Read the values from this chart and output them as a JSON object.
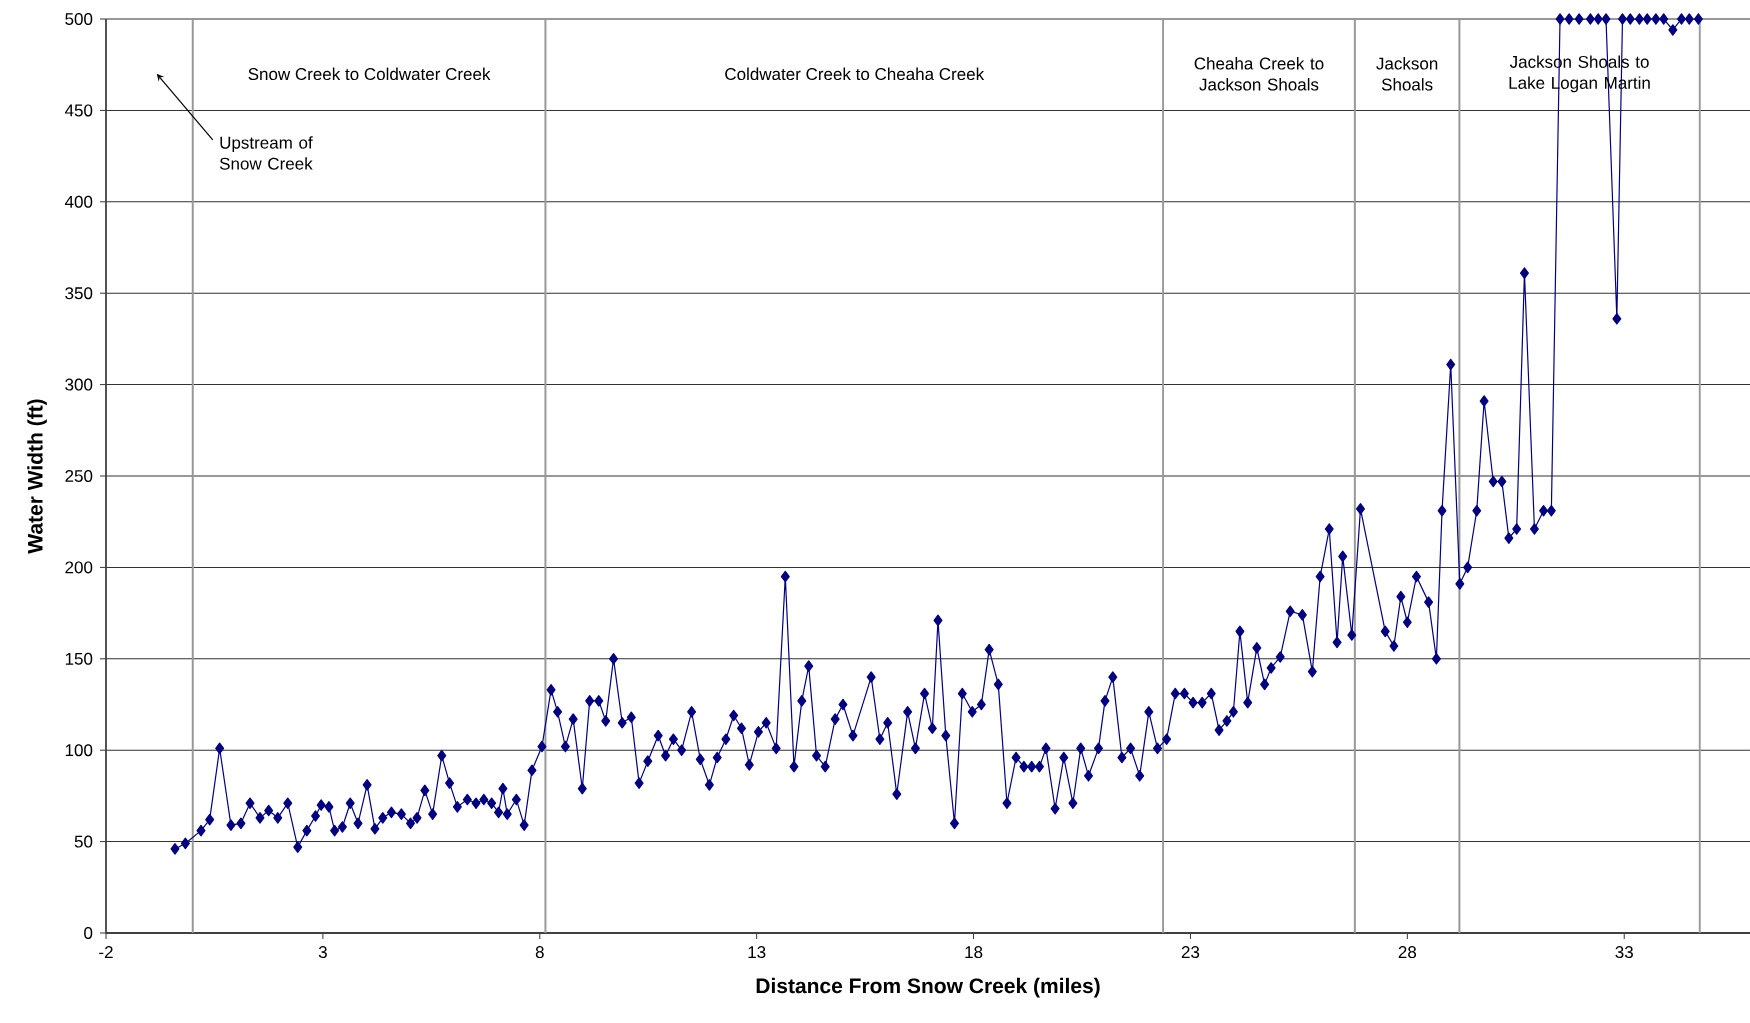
{
  "chart_data": {
    "type": "line",
    "xlabel": "Distance From Snow Creek (miles)",
    "ylabel": "Water Width (ft)",
    "xlim": [
      -2,
      35.9
    ],
    "ylim": [
      0,
      500
    ],
    "xticks": [
      -2,
      3,
      8,
      13,
      18,
      23,
      28,
      33
    ],
    "yticks": [
      0,
      50,
      100,
      150,
      200,
      250,
      300,
      350,
      400,
      450,
      500
    ],
    "grid": "y",
    "marker": "diamond",
    "line_style": "solid",
    "series": [
      {
        "color": "#000080",
        "x": [
          -0.41,
          -0.17,
          0.19,
          0.39,
          0.62,
          0.88,
          1.11,
          1.32,
          1.55,
          1.75,
          1.96,
          2.19,
          2.42,
          2.63,
          2.83,
          2.96,
          3.14,
          3.27,
          3.45,
          3.63,
          3.81,
          4.02,
          4.2,
          4.38,
          4.58,
          4.81,
          5.02,
          5.17,
          5.35,
          5.53,
          5.74,
          5.92,
          6.1,
          6.33,
          6.53,
          6.71,
          6.89,
          7.05,
          7.15,
          7.25,
          7.46,
          7.64,
          7.82,
          8.05,
          8.26,
          8.41,
          8.59,
          8.77,
          8.98,
          9.15,
          9.36,
          9.52,
          9.7,
          9.9,
          10.11,
          10.29,
          10.49,
          10.73,
          10.9,
          11.08,
          11.27,
          11.5,
          11.7,
          11.91,
          12.09,
          12.29,
          12.47,
          12.65,
          12.83,
          13.04,
          13.22,
          13.45,
          13.66,
          13.86,
          14.04,
          14.2,
          14.38,
          14.58,
          14.81,
          14.99,
          15.22,
          15.64,
          15.84,
          16.02,
          16.23,
          16.48,
          16.66,
          16.87,
          17.05,
          17.18,
          17.36,
          17.56,
          17.74,
          17.97,
          18.18,
          18.36,
          18.57,
          18.77,
          18.98,
          19.16,
          19.34,
          19.52,
          19.67,
          19.88,
          20.08,
          20.29,
          20.47,
          20.65,
          20.88,
          21.03,
          21.21,
          21.42,
          21.62,
          21.83,
          22.04,
          22.24,
          22.45,
          22.65,
          22.86,
          23.06,
          23.27,
          23.48,
          23.66,
          23.84,
          23.99,
          24.14,
          24.32,
          24.53,
          24.71,
          24.86,
          25.07,
          25.3,
          25.58,
          25.81,
          25.99,
          26.2,
          26.38,
          26.51,
          26.72,
          26.92,
          27.49,
          27.69,
          27.85,
          28.0,
          28.21,
          28.49,
          28.67,
          28.8,
          29.0,
          29.21,
          29.39,
          29.6,
          29.77,
          29.98,
          30.18,
          30.34,
          30.52,
          30.7,
          30.93,
          31.14,
          31.32,
          31.52,
          31.73,
          31.96,
          32.22,
          32.4,
          32.58,
          32.83,
          32.96,
          33.14,
          33.35,
          33.53,
          33.73,
          33.91,
          34.12,
          34.32,
          34.5,
          34.71
        ],
        "values": [
          46,
          49,
          56,
          62,
          101,
          59,
          60,
          71,
          63,
          67,
          63,
          71,
          47,
          56,
          64,
          70,
          69,
          56,
          58,
          71,
          60,
          81,
          57,
          63,
          66,
          65,
          60,
          63,
          78,
          65,
          97,
          82,
          69,
          73,
          71,
          73,
          71,
          66,
          79,
          65,
          73,
          59,
          89,
          102,
          133,
          121,
          102,
          117,
          79,
          127,
          127,
          116,
          150,
          115,
          118,
          82,
          94,
          108,
          97,
          106,
          100,
          121,
          95,
          81,
          96,
          106,
          119,
          112,
          92,
          110,
          115,
          101,
          195,
          91,
          127,
          146,
          97,
          91,
          117,
          125,
          108,
          140,
          106,
          115,
          76,
          121,
          101,
          131,
          112,
          171,
          108,
          60,
          131,
          121,
          125,
          155,
          136,
          71,
          96,
          91,
          91,
          91,
          101,
          68,
          96,
          71,
          101,
          86,
          101,
          127,
          140,
          96,
          101,
          86,
          121,
          101,
          106,
          131,
          131,
          126,
          126,
          131,
          111,
          116,
          121,
          165,
          126,
          156,
          136,
          145,
          151,
          176,
          174,
          143,
          195,
          221,
          159,
          206,
          163,
          232,
          165,
          157,
          184,
          170,
          195,
          181,
          150,
          231,
          311,
          191,
          200,
          231,
          291,
          247,
          247,
          216,
          221,
          361,
          221,
          231,
          231,
          500,
          500,
          500,
          500,
          500,
          500,
          336,
          500,
          500,
          500,
          500,
          500,
          500,
          494,
          500,
          500,
          500
        ]
      }
    ],
    "ref_lines": [
      {
        "axis": "x",
        "value": 0,
        "color": "#999999"
      },
      {
        "axis": "x",
        "value": 8.13,
        "color": "#999999"
      },
      {
        "axis": "x",
        "value": 22.37,
        "color": "#999999"
      },
      {
        "axis": "x",
        "value": 26.79,
        "color": "#999999"
      },
      {
        "axis": "x",
        "value": 29.2,
        "color": "#999999"
      },
      {
        "axis": "x",
        "value": 34.74,
        "color": "#999999"
      }
    ],
    "annotations": [
      "Snow Creek to Coldwater Creek",
      "Coldwater Creek to Cheaha Creek",
      "Cheaha Creek to Jackson Shoals",
      "Jackson Shoals",
      "Jackson Shoals to Lake Logan Martin",
      "Upstream of Snow Creek"
    ]
  }
}
